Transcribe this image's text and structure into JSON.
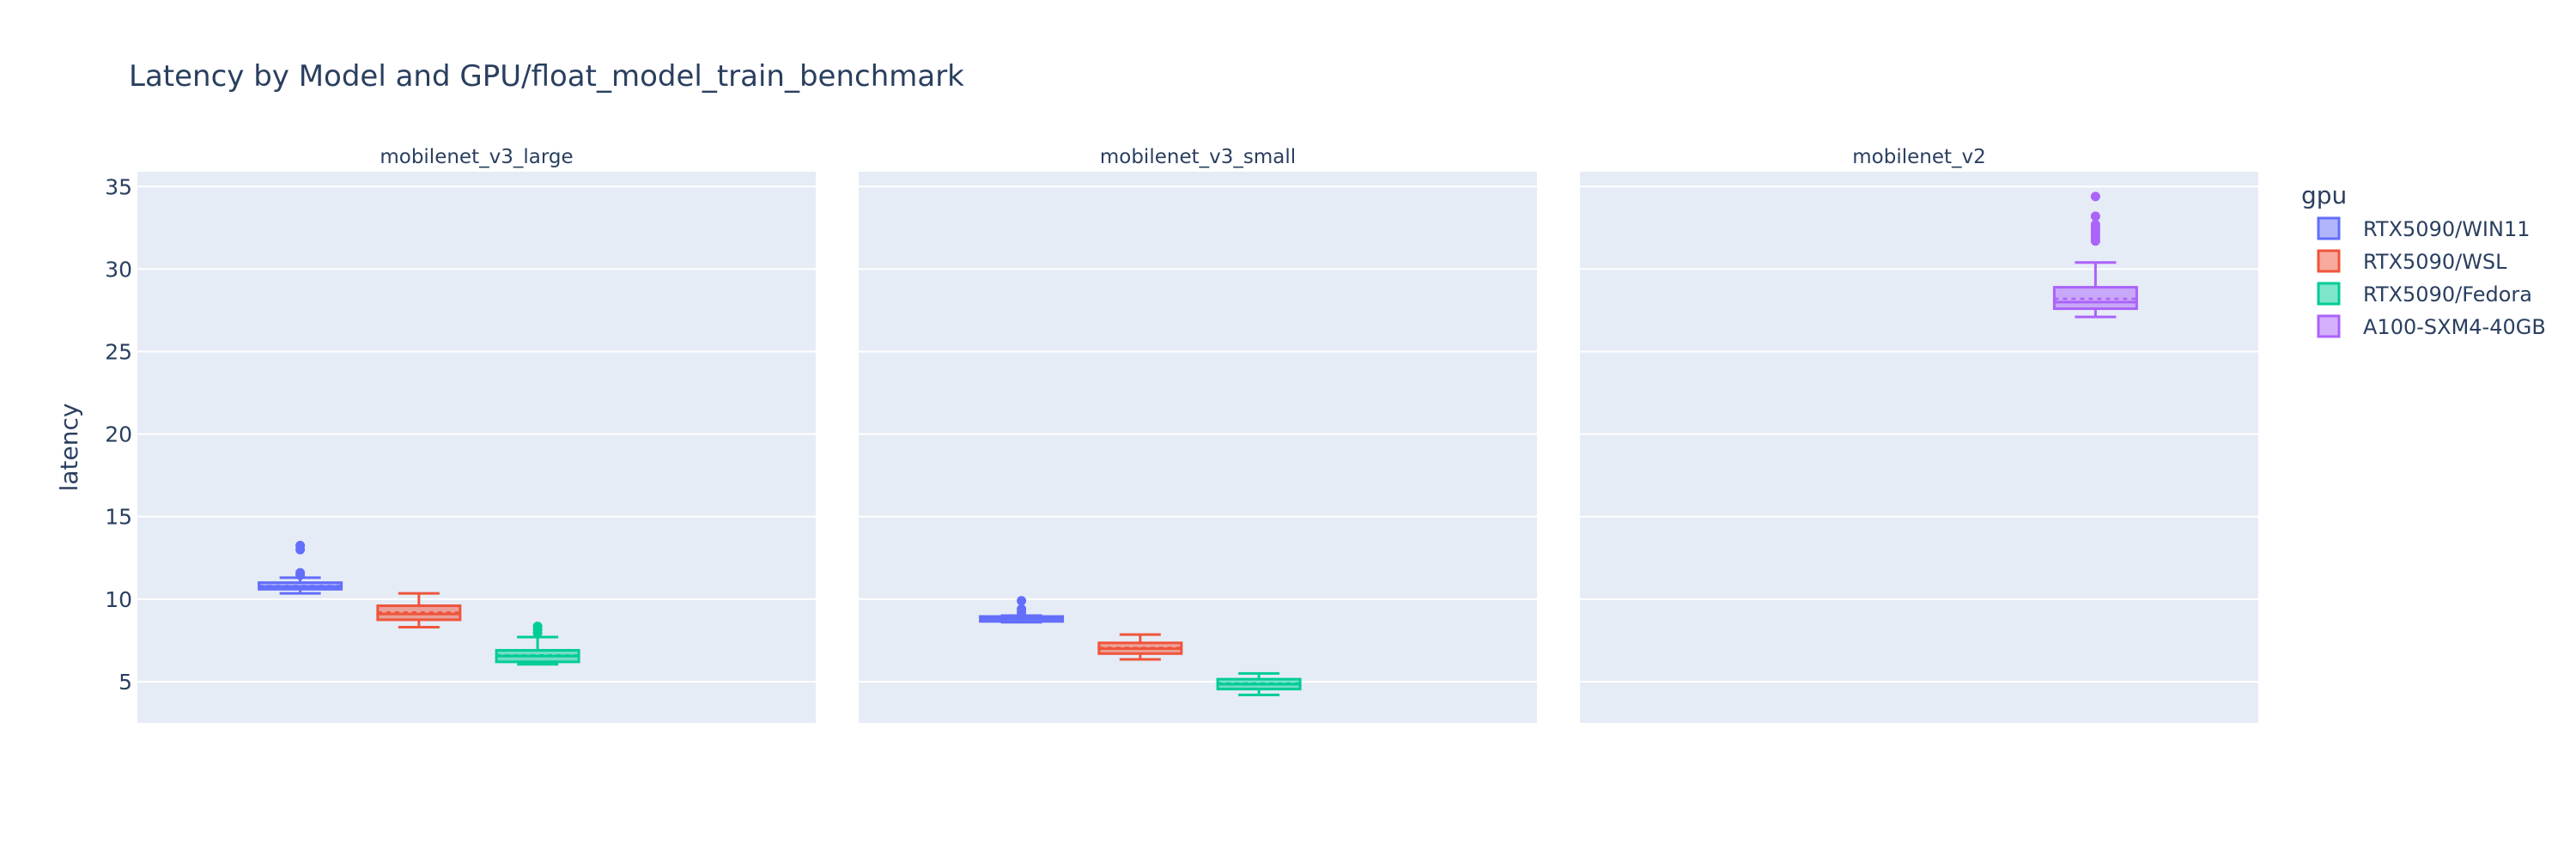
{
  "chart_data": {
    "type": "box",
    "title": "Latency by Model and GPU/float_model_train_benchmark",
    "ylabel": "latency",
    "ylim": [
      2.5,
      35.9
    ],
    "yticks": [
      5,
      10,
      15,
      20,
      25,
      30,
      35
    ],
    "grid": true,
    "legend": {
      "title": "gpu",
      "placement": "right",
      "entries": [
        "RTX5090/WIN11",
        "RTX5090/WSL",
        "RTX5090/Fedora",
        "A100-SXM4-40GB"
      ]
    },
    "colors": {
      "RTX5090/WIN11": "#636efa",
      "RTX5090/WSL": "#ef553b",
      "RTX5090/Fedora": "#00cc96",
      "A100-SXM4-40GB": "#ab63fa",
      "plot_bg": "#e5ecf6",
      "text": "#2a3f5f"
    },
    "panels": [
      {
        "title": "mobilenet_v3_large",
        "boxes": [
          {
            "gpu": "RTX5090/WIN11",
            "pos": 0.24,
            "min": 10.35,
            "q1": 10.6,
            "median": 10.75,
            "mean": 10.8,
            "q3": 11.0,
            "max": 11.3,
            "outliers": [
              11.45,
              11.6,
              13.0,
              13.25
            ]
          },
          {
            "gpu": "RTX5090/WSL",
            "pos": 0.415,
            "min": 8.3,
            "q1": 8.75,
            "median": 9.1,
            "mean": 9.2,
            "q3": 9.6,
            "max": 10.35,
            "outliers": []
          },
          {
            "gpu": "RTX5090/Fedora",
            "pos": 0.59,
            "min": 6.05,
            "q1": 6.2,
            "median": 6.55,
            "mean": 6.6,
            "q3": 6.9,
            "max": 7.7,
            "outliers": [
              7.95,
              8.15,
              8.35
            ]
          }
        ]
      },
      {
        "title": "mobilenet_v3_small",
        "boxes": [
          {
            "gpu": "RTX5090/WIN11",
            "pos": 0.24,
            "min": 8.6,
            "q1": 8.65,
            "median": 8.8,
            "mean": 8.85,
            "q3": 8.95,
            "max": 9.0,
            "outliers": [
              9.2,
              9.4,
              9.9
            ]
          },
          {
            "gpu": "RTX5090/WSL",
            "pos": 0.415,
            "min": 6.35,
            "q1": 6.7,
            "median": 7.0,
            "mean": 7.05,
            "q3": 7.35,
            "max": 7.85,
            "outliers": []
          },
          {
            "gpu": "RTX5090/Fedora",
            "pos": 0.59,
            "min": 4.2,
            "q1": 4.55,
            "median": 4.85,
            "mean": 4.9,
            "q3": 5.15,
            "max": 5.5,
            "outliers": []
          }
        ]
      },
      {
        "title": "mobilenet_v2",
        "boxes": [
          {
            "gpu": "A100-SXM4-40GB",
            "pos": 0.76,
            "min": 27.1,
            "q1": 27.6,
            "median": 28.0,
            "mean": 28.2,
            "q3": 28.9,
            "max": 30.4,
            "outliers": [
              31.7,
              31.9,
              32.1,
              32.3,
              32.5,
              32.7,
              33.2,
              34.4
            ]
          }
        ]
      }
    ]
  }
}
